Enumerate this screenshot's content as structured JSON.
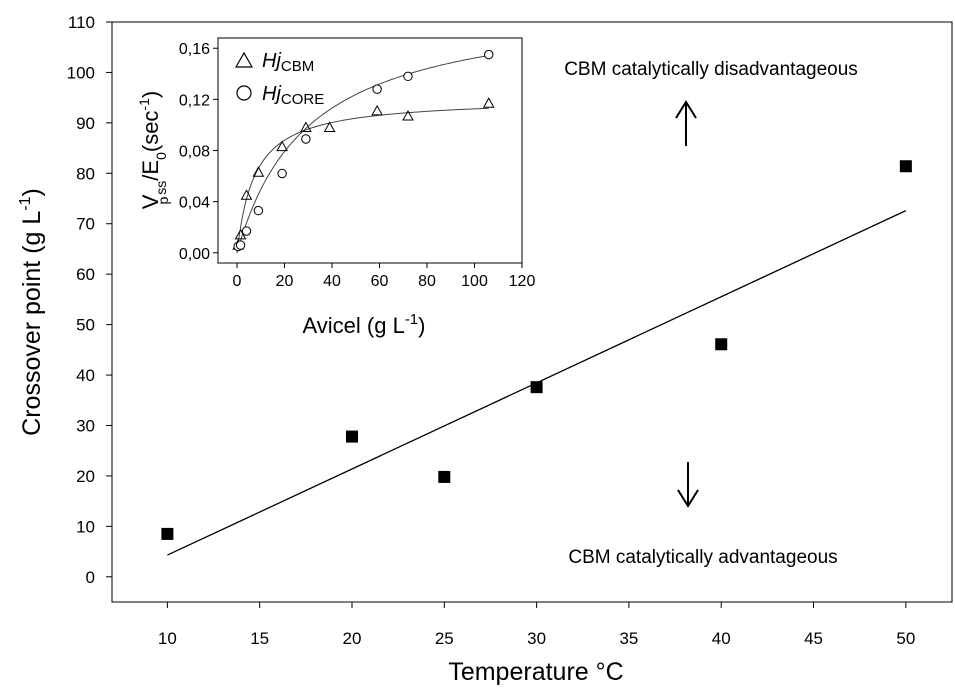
{
  "chart_data": [
    {
      "type": "scatter",
      "x": [
        10,
        20,
        25,
        30,
        40,
        50
      ],
      "y": [
        8.5,
        27.8,
        19.8,
        37.6,
        46.1,
        81.4
      ],
      "trendline": {
        "x": [
          10,
          50
        ],
        "y": [
          4.3,
          72.6
        ]
      },
      "xlabel": "Temperature °C",
      "ylabel": "Crossover point (g L-1)",
      "ylabel_main": "Crossover point (g L",
      "ylabel_sup": "-1",
      "ylabel_close": ")",
      "xlim": [
        7,
        52.5
      ],
      "ylim": [
        -5,
        110
      ],
      "xticks": [
        "10",
        "15",
        "20",
        "25",
        "30",
        "35",
        "40",
        "45",
        "50"
      ],
      "yticks": [
        "0",
        "10",
        "20",
        "30",
        "40",
        "50",
        "60",
        "70",
        "80",
        "90",
        "100",
        "110"
      ],
      "annotations": {
        "top": "CBM catalytically disadvantageous",
        "bottom": "CBM catalytically advantageous"
      },
      "grid": false
    },
    {
      "type": "scatter",
      "placement": "inset top-left",
      "xlabel": "Avicel (g L-1)",
      "xlabel_main": "Avicel (g L",
      "xlabel_sup": "-1",
      "xlabel_close": ")",
      "ylabel": "Vp ss/E0(sec-1)",
      "ylabel_parts": {
        "v": "V",
        "p": "p",
        "ss": "ss",
        "e": "/E",
        "zero": "0",
        "sec": "(sec",
        "sup": "-1",
        "close": ")"
      },
      "xlim": [
        -8,
        120
      ],
      "ylim": [
        -0.008,
        0.168
      ],
      "xticks": [
        "0",
        "20",
        "40",
        "60",
        "80",
        "100",
        "120"
      ],
      "yticks": [
        "0,00",
        "0,04",
        "0,08",
        "0,12",
        "0,16"
      ],
      "series": [
        {
          "name": "Hj CBM",
          "name_main": "Hj",
          "name_sub": "CBM",
          "marker": "triangle",
          "x": [
            0.5,
            1.5,
            4,
            9,
            19,
            29,
            39,
            59,
            72,
            106
          ],
          "y": [
            0.006,
            0.014,
            0.045,
            0.063,
            0.083,
            0.098,
            0.098,
            0.111,
            0.107,
            0.117
          ],
          "fit": {
            "model": "saturation",
            "vmax": 0.121,
            "km": 7.5
          }
        },
        {
          "name": "Hj CORE",
          "name_main": "Hj",
          "name_sub": "CORE",
          "marker": "circle",
          "x": [
            0.5,
            1.5,
            4,
            9,
            19,
            29,
            59,
            72,
            106
          ],
          "y": [
            0.005,
            0.006,
            0.017,
            0.033,
            0.062,
            0.089,
            0.128,
            0.138,
            0.155
          ],
          "fit": {
            "model": "saturation",
            "vmax": 0.198,
            "km": 30
          }
        }
      ]
    }
  ]
}
